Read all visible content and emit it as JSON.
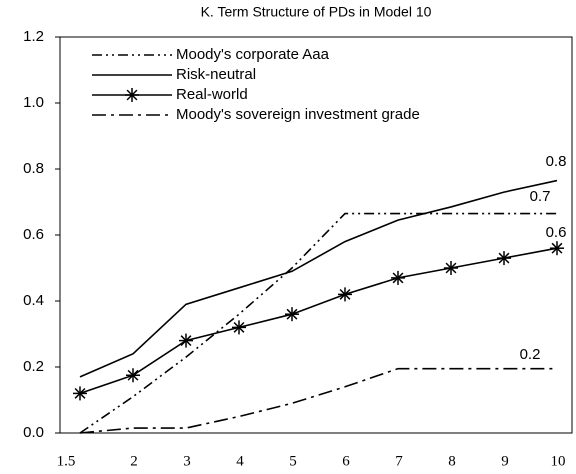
{
  "chart_data": {
    "type": "line",
    "title": "K. Term Structure of PDs in Model 10",
    "categories": [
      "1.5",
      "2",
      "3",
      "4",
      "5",
      "6",
      "7",
      "8",
      "9",
      "10"
    ],
    "series": [
      {
        "name": "Moody's corporate Aaa",
        "color": "#000000",
        "dash": "dash-dot-dot",
        "values": [
          0.0,
          0.11,
          0.23,
          0.36,
          0.5,
          0.665,
          0.665,
          0.665,
          0.665,
          0.665
        ]
      },
      {
        "name": "Risk-neutral",
        "color": "#000000",
        "dash": "solid",
        "values": [
          0.17,
          0.24,
          0.39,
          0.44,
          0.49,
          0.58,
          0.645,
          0.685,
          0.73,
          0.765
        ]
      },
      {
        "name": "Real-world",
        "color": "#000000",
        "dash": "solid",
        "marker": "star",
        "values": [
          0.12,
          0.175,
          0.28,
          0.32,
          0.36,
          0.42,
          0.47,
          0.5,
          0.53,
          0.56
        ]
      },
      {
        "name": "Moody's sovereign investment grade",
        "color": "#000000",
        "dash": "dash-dot",
        "values": [
          0.0,
          0.015,
          0.015,
          0.05,
          0.09,
          0.14,
          0.195,
          0.195,
          0.195,
          0.195
        ]
      }
    ],
    "annotations": [
      "0.8",
      "0.7",
      "0.6",
      "0.2"
    ],
    "ylim": [
      0,
      1.2
    ],
    "yticks": [
      {
        "value": 0,
        "label": "0.0"
      },
      0.2,
      0.4,
      0.6,
      0.8,
      {
        "value": 1,
        "label": "1.0"
      },
      1.2
    ],
    "grid": false,
    "legend": "upper left"
  }
}
